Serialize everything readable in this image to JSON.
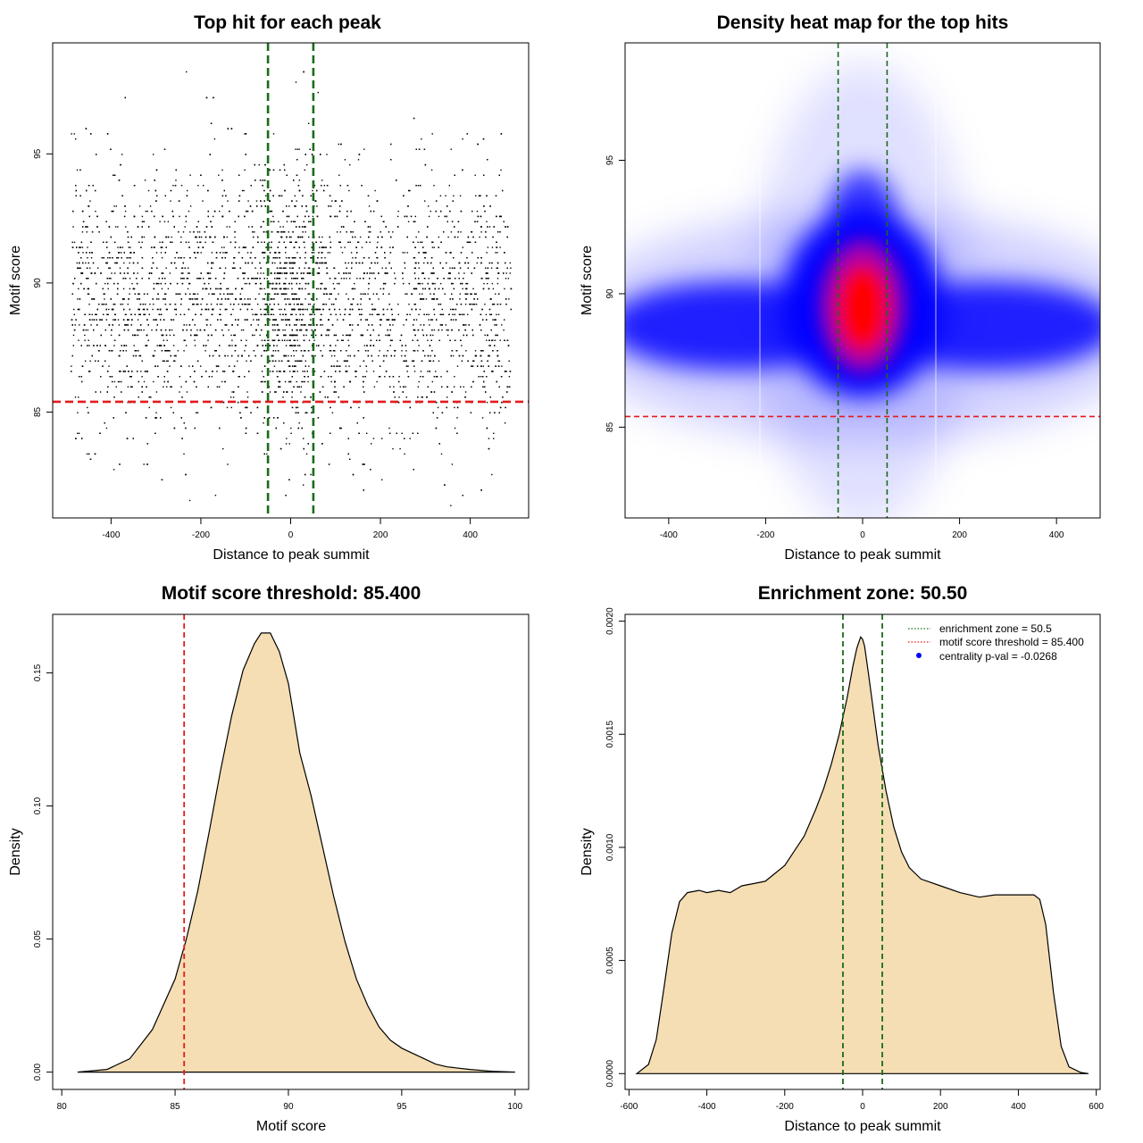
{
  "colors": {
    "threshold_line": "#e41a1c",
    "zone_line": "#1a6b1a",
    "density_fill": "#f5deb3",
    "scatter_point": "#000000",
    "legend_dot": "#0000ff"
  },
  "chart_data": [
    {
      "id": "scatter",
      "type": "scatter",
      "title": "Top hit for each peak",
      "xlabel": "Distance to peak summit",
      "ylabel": "Motif score",
      "xlim": [
        -530,
        530
      ],
      "ylim": [
        80.9,
        99.3
      ],
      "xticks": [
        -400,
        -200,
        0,
        200,
        400
      ],
      "yticks": [
        85,
        90,
        95
      ],
      "hlines": [
        85.4
      ],
      "vlines": [
        -50.5,
        50.5
      ],
      "x_range": [
        -490,
        490
      ],
      "score_mean": 89.3,
      "score_sd": 2.4,
      "center_enriched": true
    },
    {
      "id": "heatmap",
      "type": "heatmap",
      "title": "Density heat map for the top hits",
      "xlabel": "Distance to peak summit",
      "ylabel": "Motif score",
      "xlim": [
        -490,
        490
      ],
      "ylim": [
        81.6,
        99.4
      ],
      "xticks": [
        -400,
        -200,
        0,
        200,
        400
      ],
      "yticks": [
        85,
        90,
        95
      ],
      "hlines": [
        85.4
      ],
      "vlines": [
        -50.5,
        50.5
      ],
      "hotspot": {
        "x": 0,
        "y": 89.3
      },
      "band_center": 88.7,
      "colors": [
        "#ffffff",
        "#0000ff",
        "#ff0000"
      ]
    },
    {
      "id": "score_density",
      "type": "area",
      "title": "Motif score threshold: 85.400",
      "xlabel": "Motif score",
      "ylabel": "Density",
      "xlim": [
        79.6,
        100.6
      ],
      "ylim": [
        -0.0065,
        0.172
      ],
      "xticks": [
        80,
        85,
        90,
        95,
        100
      ],
      "ytick_labels": [
        "0.00",
        "0.05",
        "0.10",
        "0.15"
      ],
      "ytick_values": [
        0,
        0.05,
        0.1,
        0.15
      ],
      "vlines": [
        85.4
      ],
      "x": [
        80.7,
        82.0,
        83.0,
        84.0,
        85.0,
        85.5,
        86.0,
        86.5,
        87.0,
        87.5,
        88.0,
        88.5,
        88.8,
        89.2,
        89.6,
        90.0,
        90.5,
        91.0,
        91.5,
        92.0,
        92.5,
        93.0,
        93.5,
        94.0,
        94.5,
        95.0,
        95.5,
        96.0,
        96.5,
        97.0,
        98.0,
        99.0,
        100.0
      ],
      "y": [
        0.0,
        0.001,
        0.005,
        0.016,
        0.035,
        0.05,
        0.068,
        0.09,
        0.113,
        0.134,
        0.151,
        0.161,
        0.165,
        0.165,
        0.158,
        0.146,
        0.12,
        0.104,
        0.085,
        0.066,
        0.049,
        0.035,
        0.025,
        0.017,
        0.012,
        0.009,
        0.007,
        0.005,
        0.003,
        0.002,
        0.001,
        0.0003,
        0.0
      ]
    },
    {
      "id": "distance_density",
      "type": "area",
      "title": "Enrichment zone: 50.50",
      "xlabel": "Distance to peak summit",
      "ylabel": "Density",
      "xlim": [
        -610,
        610
      ],
      "ylim": [
        -7e-05,
        0.00203
      ],
      "xticks": [
        -600,
        -400,
        -200,
        0,
        200,
        400,
        600
      ],
      "ytick_labels": [
        "0.0000",
        "0.0005",
        "0.0010",
        "0.0015",
        "0.0020"
      ],
      "ytick_values": [
        0,
        0.0005,
        0.001,
        0.0015,
        0.002
      ],
      "vlines": [
        -50.5,
        50.5
      ],
      "x": [
        -580,
        -550,
        -530,
        -510,
        -490,
        -470,
        -450,
        -420,
        -400,
        -370,
        -340,
        -310,
        -280,
        -250,
        -200,
        -150,
        -120,
        -100,
        -80,
        -60,
        -40,
        -25,
        -15,
        -5,
        0,
        5,
        15,
        25,
        40,
        60,
        80,
        100,
        120,
        150,
        200,
        250,
        300,
        340,
        380,
        420,
        440,
        455,
        470,
        490,
        510,
        530,
        560,
        580
      ],
      "y": [
        0.0,
        4e-05,
        0.00015,
        0.00038,
        0.00062,
        0.00076,
        0.0008,
        0.00081,
        0.0008,
        0.00081,
        0.0008,
        0.00083,
        0.00084,
        0.00085,
        0.00092,
        0.00105,
        0.00117,
        0.00126,
        0.00137,
        0.0015,
        0.00166,
        0.0018,
        0.00188,
        0.00193,
        0.00192,
        0.00189,
        0.00177,
        0.00164,
        0.00145,
        0.00125,
        0.00109,
        0.00098,
        0.00091,
        0.00086,
        0.00083,
        0.0008,
        0.00078,
        0.00079,
        0.00079,
        0.00079,
        0.00079,
        0.00077,
        0.00066,
        0.00036,
        0.00012,
        3e-05,
        5e-06,
        0.0
      ]
    }
  ],
  "legend": {
    "items": [
      {
        "label": "enrichment zone = 50.5",
        "kind": "dotted-line",
        "color": "#1a6b1a"
      },
      {
        "label": "motif score threshold = 85.400",
        "kind": "dotted-line",
        "color": "#e41a1c"
      },
      {
        "label": "centrality p-val = -0.0268",
        "kind": "dot",
        "color": "#0000ff"
      }
    ]
  }
}
